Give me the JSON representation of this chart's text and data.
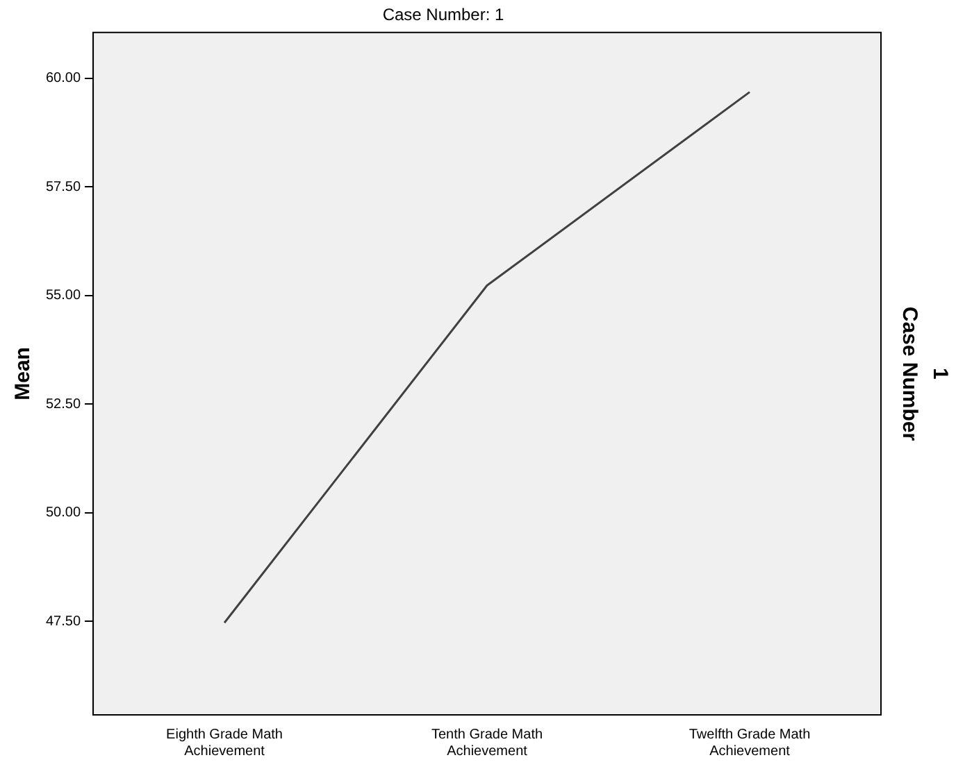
{
  "chart_data": {
    "type": "line",
    "title": "Case Number: 1",
    "ylabel": "Mean",
    "y2label": "Case Number",
    "annotations": [
      "1"
    ],
    "categories": [
      "Eighth Grade Math Achievement",
      "Tenth Grade Math Achievement",
      "Twelfth Grade Math Achievement"
    ],
    "series": [
      {
        "color": "#404040",
        "values": [
          47.47,
          55.23,
          59.68
        ]
      }
    ],
    "ylim": [
      45.35,
      61.05
    ],
    "yticks": [
      {
        "value": 47.5,
        "label": "47.50"
      },
      {
        "value": 50,
        "label": "50.00"
      },
      {
        "value": 52.5,
        "label": "52.50"
      },
      {
        "value": 55,
        "label": "55.00"
      },
      {
        "value": 57.5,
        "label": "57.50"
      },
      {
        "value": 60,
        "label": "60.00"
      }
    ],
    "grid": false,
    "legend": false,
    "marker": "none",
    "line_style": "solid"
  }
}
